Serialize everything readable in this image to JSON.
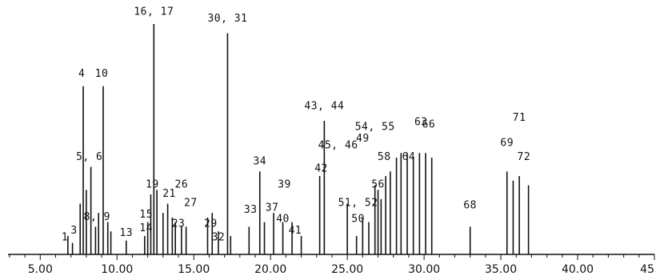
{
  "chart_data": {
    "type": "line",
    "x_ticks": [
      "5.00",
      "10.00",
      "15.00",
      "20.00",
      "25.00",
      "30.00",
      "35.00",
      "40.00",
      "45"
    ],
    "x_tick_values": [
      5,
      10,
      15,
      20,
      25,
      30,
      35,
      40,
      45
    ],
    "xlim": [
      2.9,
      45.0
    ],
    "ylim": [
      0,
      100
    ],
    "minor_tick_step": 1,
    "grid": false,
    "peaks": [
      [
        6.8,
        8
      ],
      [
        7.1,
        5
      ],
      [
        7.6,
        22
      ],
      [
        7.8,
        73
      ],
      [
        8.0,
        28
      ],
      [
        8.3,
        38
      ],
      [
        8.6,
        12
      ],
      [
        8.8,
        18
      ],
      [
        9.1,
        73
      ],
      [
        9.4,
        14
      ],
      [
        9.6,
        10
      ],
      [
        10.6,
        6
      ],
      [
        11.8,
        8
      ],
      [
        12.0,
        14
      ],
      [
        12.2,
        26
      ],
      [
        12.4,
        100
      ],
      [
        12.6,
        28
      ],
      [
        13.0,
        18
      ],
      [
        13.3,
        22
      ],
      [
        13.6,
        16
      ],
      [
        13.8,
        14
      ],
      [
        14.2,
        12
      ],
      [
        14.5,
        12
      ],
      [
        15.9,
        16
      ],
      [
        16.2,
        18
      ],
      [
        16.6,
        10
      ],
      [
        17.2,
        96
      ],
      [
        17.4,
        8
      ],
      [
        18.6,
        12
      ],
      [
        19.3,
        36
      ],
      [
        19.6,
        14
      ],
      [
        20.2,
        18
      ],
      [
        20.8,
        14
      ],
      [
        21.4,
        14
      ],
      [
        22.0,
        8
      ],
      [
        23.2,
        34
      ],
      [
        23.5,
        58
      ],
      [
        25.0,
        22
      ],
      [
        25.6,
        8
      ],
      [
        26.0,
        16
      ],
      [
        26.4,
        14
      ],
      [
        26.8,
        30
      ],
      [
        27.0,
        28
      ],
      [
        27.2,
        24
      ],
      [
        27.5,
        34
      ],
      [
        27.8,
        36
      ],
      [
        28.2,
        42
      ],
      [
        28.5,
        44
      ],
      [
        28.9,
        44
      ],
      [
        29.3,
        42
      ],
      [
        29.7,
        44
      ],
      [
        30.1,
        44
      ],
      [
        30.5,
        42
      ],
      [
        33.0,
        12
      ],
      [
        35.4,
        36
      ],
      [
        35.8,
        32
      ],
      [
        36.2,
        34
      ],
      [
        36.8,
        30
      ]
    ],
    "annotations": [
      {
        "text": "1",
        "x": 6.6,
        "y": 6
      },
      {
        "text": "3",
        "x": 7.2,
        "y": 9
      },
      {
        "text": "4",
        "x": 7.7,
        "y": 77
      },
      {
        "text": "10",
        "x": 9.0,
        "y": 77
      },
      {
        "text": "5, 6",
        "x": 8.2,
        "y": 41
      },
      {
        "text": "8, 9",
        "x": 8.7,
        "y": 15
      },
      {
        "text": "13",
        "x": 10.6,
        "y": 8
      },
      {
        "text": "14",
        "x": 11.9,
        "y": 10
      },
      {
        "text": "15",
        "x": 11.9,
        "y": 16
      },
      {
        "text": "16, 17",
        "x": 12.4,
        "y": 104
      },
      {
        "text": "19",
        "x": 12.3,
        "y": 29
      },
      {
        "text": "21",
        "x": 13.4,
        "y": 25
      },
      {
        "text": "26",
        "x": 14.2,
        "y": 29
      },
      {
        "text": "27",
        "x": 14.8,
        "y": 21
      },
      {
        "text": "23",
        "x": 14.0,
        "y": 12
      },
      {
        "text": "29",
        "x": 16.1,
        "y": 12
      },
      {
        "text": "32",
        "x": 16.6,
        "y": 6
      },
      {
        "text": "30, 31",
        "x": 17.2,
        "y": 101
      },
      {
        "text": "33",
        "x": 18.7,
        "y": 18
      },
      {
        "text": "34",
        "x": 19.3,
        "y": 39
      },
      {
        "text": "37",
        "x": 20.1,
        "y": 19
      },
      {
        "text": "39",
        "x": 20.9,
        "y": 29
      },
      {
        "text": "40",
        "x": 20.8,
        "y": 14
      },
      {
        "text": "41",
        "x": 21.6,
        "y": 9
      },
      {
        "text": "42",
        "x": 23.3,
        "y": 36
      },
      {
        "text": "43, 44",
        "x": 23.5,
        "y": 63
      },
      {
        "text": "45, 46",
        "x": 24.4,
        "y": 46
      },
      {
        "text": "49",
        "x": 26.0,
        "y": 49
      },
      {
        "text": "50",
        "x": 25.7,
        "y": 14
      },
      {
        "text": "51, 52",
        "x": 25.7,
        "y": 21
      },
      {
        "text": "54, 55",
        "x": 26.8,
        "y": 54
      },
      {
        "text": "56",
        "x": 27.0,
        "y": 29
      },
      {
        "text": "58",
        "x": 27.4,
        "y": 41
      },
      {
        "text": "63",
        "x": 29.8,
        "y": 56
      },
      {
        "text": "64",
        "x": 29.0,
        "y": 41
      },
      {
        "text": "66",
        "x": 30.3,
        "y": 55
      },
      {
        "text": "68",
        "x": 33.0,
        "y": 20
      },
      {
        "text": "69",
        "x": 35.4,
        "y": 47
      },
      {
        "text": "71",
        "x": 36.2,
        "y": 58
      },
      {
        "text": "72",
        "x": 36.5,
        "y": 41
      }
    ]
  }
}
